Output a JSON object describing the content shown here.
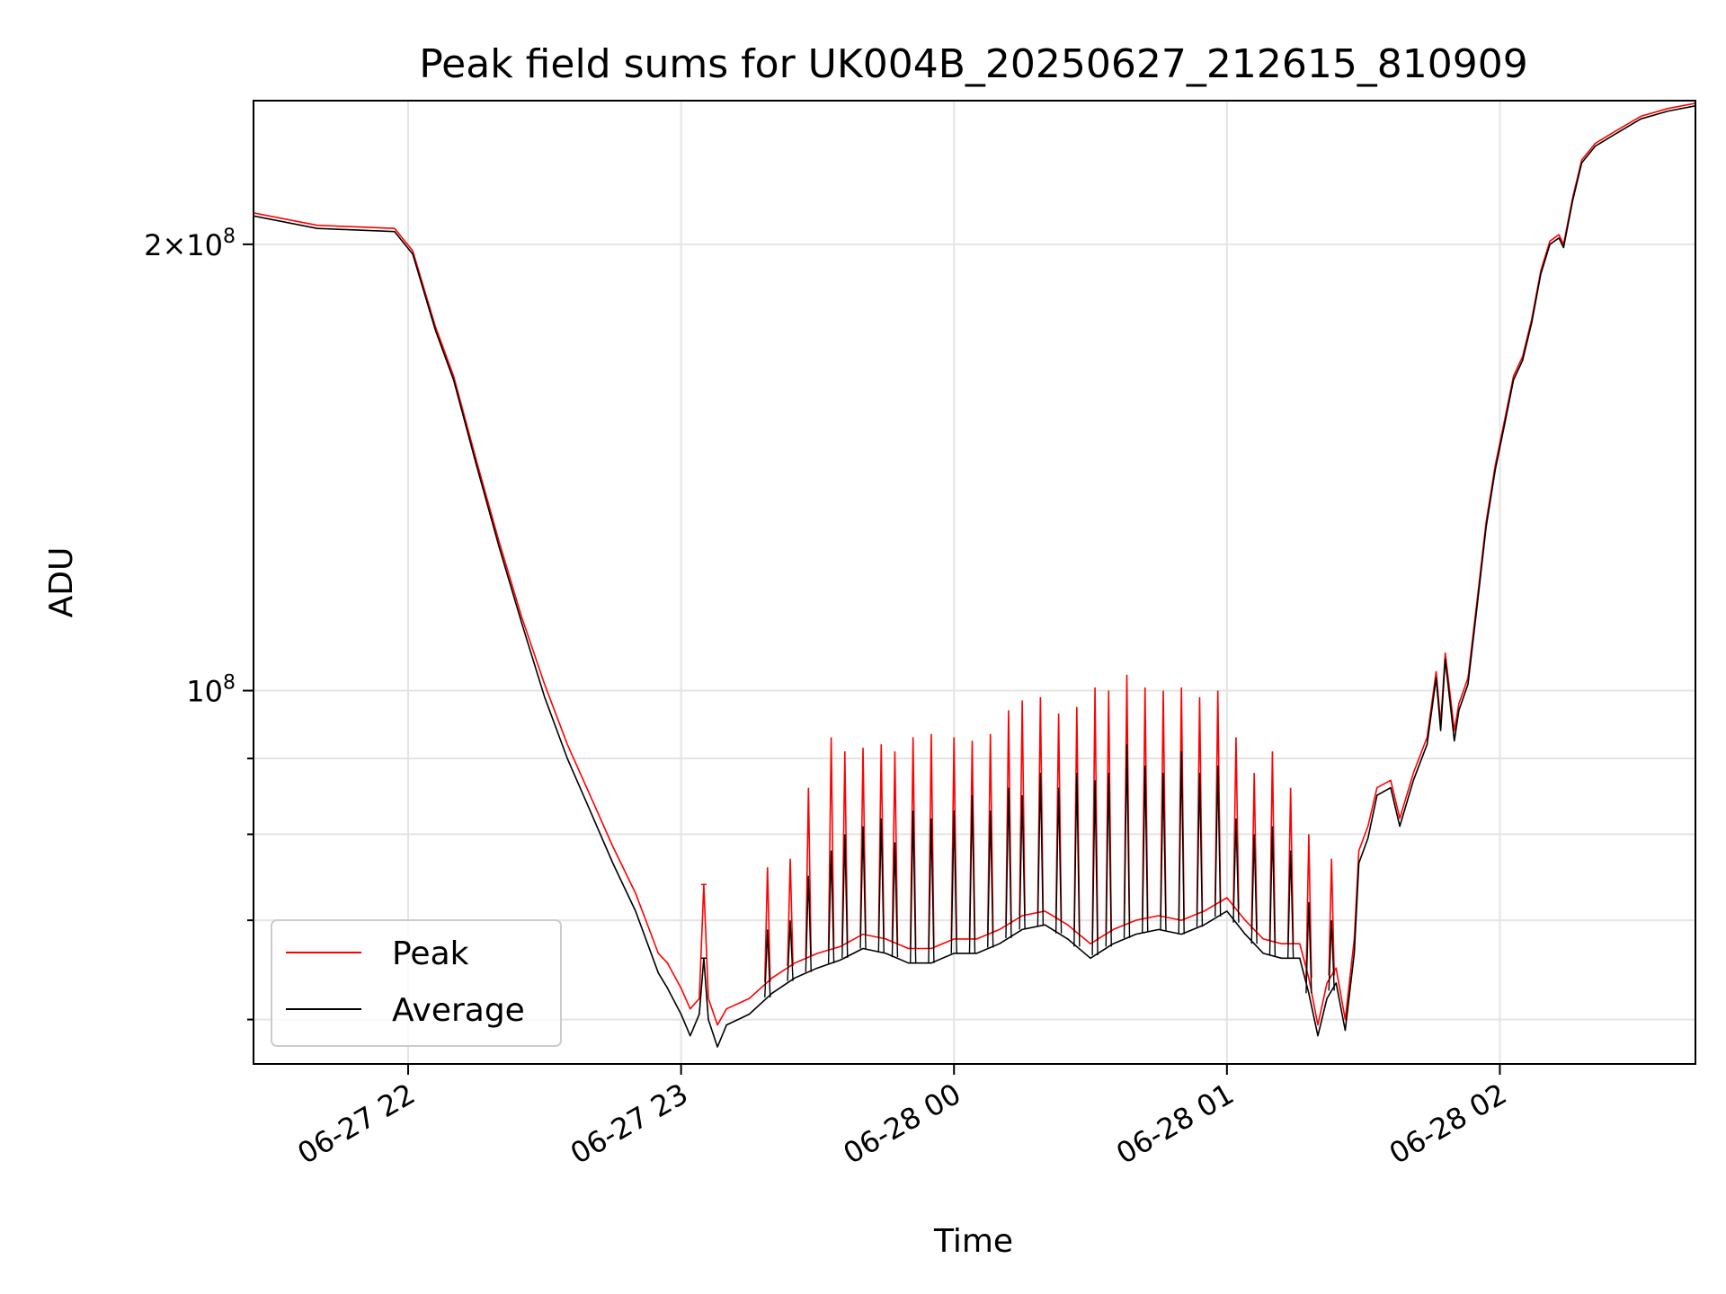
{
  "chart_data": {
    "type": "line",
    "title": "Peak field sums for UK004B_20250627_212615_810909",
    "xlabel": "Time",
    "ylabel": "ADU",
    "yscale": "log",
    "ylim": [
      56000000,
      250000000
    ],
    "xlim": [
      "2025-06-27 21:26",
      "2025-06-28 02:43"
    ],
    "grid": true,
    "legend_position": "lower-left",
    "x_ticks": [
      {
        "label": "06-27 22",
        "time": "2025-06-27 22:00"
      },
      {
        "label": "06-27 23",
        "time": "2025-06-27 23:00"
      },
      {
        "label": "06-28 00",
        "time": "2025-06-28 00:00"
      },
      {
        "label": "06-28 01",
        "time": "2025-06-28 01:00"
      },
      {
        "label": "06-28 02",
        "time": "2025-06-28 02:00"
      }
    ],
    "y_ticks": [
      {
        "value": 200000000,
        "mantissa": "2",
        "exponent": "8"
      },
      {
        "value": 100000000,
        "mantissa": "",
        "exponent": "8"
      }
    ],
    "y_minor_ticks": [
      60000000,
      70000000,
      80000000,
      90000000
    ],
    "series": [
      {
        "name": "Peak",
        "color": "#ff0000",
        "points": [
          [
            "2025-06-27 21:26",
            210000000
          ],
          [
            "2025-06-27 21:40",
            206000000
          ],
          [
            "2025-06-27 21:57",
            205000000
          ],
          [
            "2025-06-27 22:01",
            198000000
          ],
          [
            "2025-06-27 22:06",
            176000000
          ],
          [
            "2025-06-27 22:10",
            163000000
          ],
          [
            "2025-06-27 22:15",
            143000000
          ],
          [
            "2025-06-27 22:20",
            126000000
          ],
          [
            "2025-06-27 22:25",
            112000000
          ],
          [
            "2025-06-27 22:30",
            101000000
          ],
          [
            "2025-06-27 22:35",
            92000000
          ],
          [
            "2025-06-27 22:40",
            85000000
          ],
          [
            "2025-06-27 22:45",
            78500000
          ],
          [
            "2025-06-27 22:50",
            73000000
          ],
          [
            "2025-06-27 22:55",
            66500000
          ],
          [
            "2025-06-27 22:57",
            65500000
          ],
          [
            "2025-06-27 23:00",
            63000000
          ],
          [
            "2025-06-27 23:02",
            61000000
          ],
          [
            "2025-06-27 23:04",
            62000000
          ],
          [
            "2025-06-27 23:05",
            74000000
          ],
          [
            "2025-06-27 23:06",
            62000000
          ],
          [
            "2025-06-27 23:08",
            59500000
          ],
          [
            "2025-06-27 23:10",
            61000000
          ],
          [
            "2025-06-27 23:15",
            62000000
          ],
          [
            "2025-06-27 23:20",
            64000000
          ],
          [
            "2025-06-27 23:25",
            65500000
          ],
          [
            "2025-06-27 23:30",
            66500000
          ],
          [
            "2025-06-27 23:35",
            67200000
          ],
          [
            "2025-06-27 23:40",
            68500000
          ],
          [
            "2025-06-27 23:45",
            68000000
          ],
          [
            "2025-06-27 23:50",
            67000000
          ],
          [
            "2025-06-27 23:55",
            67000000
          ],
          [
            "2025-06-28 00:00",
            68000000
          ],
          [
            "2025-06-28 00:05",
            68000000
          ],
          [
            "2025-06-28 00:10",
            69000000
          ],
          [
            "2025-06-28 00:15",
            70500000
          ],
          [
            "2025-06-28 00:20",
            71000000
          ],
          [
            "2025-06-28 00:25",
            69500000
          ],
          [
            "2025-06-28 00:30",
            67500000
          ],
          [
            "2025-06-28 00:35",
            69000000
          ],
          [
            "2025-06-28 00:40",
            70000000
          ],
          [
            "2025-06-28 00:45",
            70500000
          ],
          [
            "2025-06-28 00:50",
            70000000
          ],
          [
            "2025-06-28 00:55",
            71000000
          ],
          [
            "2025-06-28 01:00",
            72500000
          ],
          [
            "2025-06-28 01:04",
            70000000
          ],
          [
            "2025-06-28 01:08",
            68000000
          ],
          [
            "2025-06-28 01:12",
            67500000
          ],
          [
            "2025-06-28 01:16",
            67500000
          ],
          [
            "2025-06-28 01:18",
            64000000
          ],
          [
            "2025-06-28 01:20",
            59500000
          ],
          [
            "2025-06-28 01:22",
            63500000
          ],
          [
            "2025-06-28 01:24",
            65000000
          ],
          [
            "2025-06-28 01:26",
            60000000
          ],
          [
            "2025-06-28 01:28",
            68000000
          ],
          [
            "2025-06-28 01:29",
            78000000
          ],
          [
            "2025-06-28 01:31",
            81000000
          ],
          [
            "2025-06-28 01:33",
            86000000
          ],
          [
            "2025-06-28 01:36",
            87000000
          ],
          [
            "2025-06-28 01:38",
            82000000
          ],
          [
            "2025-06-28 01:41",
            88000000
          ],
          [
            "2025-06-28 01:44",
            93000000
          ],
          [
            "2025-06-28 01:46",
            103000000
          ],
          [
            "2025-06-28 01:47",
            95000000
          ],
          [
            "2025-06-28 01:48",
            106000000
          ],
          [
            "2025-06-28 01:50",
            94000000
          ],
          [
            "2025-06-28 01:51",
            98000000
          ],
          [
            "2025-06-28 01:53",
            102000000
          ],
          [
            "2025-06-28 01:55",
            115000000
          ],
          [
            "2025-06-28 01:57",
            130000000
          ],
          [
            "2025-06-28 01:59",
            142000000
          ],
          [
            "2025-06-28 02:01",
            152000000
          ],
          [
            "2025-06-28 02:03",
            163000000
          ],
          [
            "2025-06-28 02:05",
            168000000
          ],
          [
            "2025-06-28 02:07",
            178000000
          ],
          [
            "2025-06-28 02:09",
            192000000
          ],
          [
            "2025-06-28 02:11",
            201000000
          ],
          [
            "2025-06-28 02:13",
            203000000
          ],
          [
            "2025-06-28 02:14",
            200000000
          ],
          [
            "2025-06-28 02:16",
            215000000
          ],
          [
            "2025-06-28 02:18",
            228000000
          ],
          [
            "2025-06-28 02:21",
            234000000
          ],
          [
            "2025-06-28 02:25",
            238000000
          ],
          [
            "2025-06-28 02:31",
            244000000
          ],
          [
            "2025-06-28 02:37",
            247000000
          ],
          [
            "2025-06-28 02:43",
            249000000
          ]
        ]
      },
      {
        "name": "Average",
        "color": "#000000",
        "points": [
          [
            "2025-06-27 21:26",
            209000000
          ],
          [
            "2025-06-27 21:40",
            205000000
          ],
          [
            "2025-06-27 21:57",
            204000000
          ],
          [
            "2025-06-27 22:01",
            197000000
          ],
          [
            "2025-06-27 22:06",
            175000000
          ],
          [
            "2025-06-27 22:10",
            162000000
          ],
          [
            "2025-06-27 22:15",
            142000000
          ],
          [
            "2025-06-27 22:20",
            125000000
          ],
          [
            "2025-06-27 22:25",
            111000000
          ],
          [
            "2025-06-27 22:30",
            99000000
          ],
          [
            "2025-06-27 22:35",
            90000000
          ],
          [
            "2025-06-27 22:40",
            83000000
          ],
          [
            "2025-06-27 22:45",
            76500000
          ],
          [
            "2025-06-27 22:50",
            71000000
          ],
          [
            "2025-06-27 22:55",
            64500000
          ],
          [
            "2025-06-27 22:57",
            63000000
          ],
          [
            "2025-06-27 23:00",
            60500000
          ],
          [
            "2025-06-27 23:02",
            58500000
          ],
          [
            "2025-06-27 23:04",
            60500000
          ],
          [
            "2025-06-27 23:05",
            66000000
          ],
          [
            "2025-06-27 23:06",
            60000000
          ],
          [
            "2025-06-27 23:08",
            57500000
          ],
          [
            "2025-06-27 23:10",
            59500000
          ],
          [
            "2025-06-27 23:15",
            60500000
          ],
          [
            "2025-06-27 23:20",
            62500000
          ],
          [
            "2025-06-27 23:25",
            64000000
          ],
          [
            "2025-06-27 23:30",
            65000000
          ],
          [
            "2025-06-27 23:35",
            65800000
          ],
          [
            "2025-06-27 23:40",
            67000000
          ],
          [
            "2025-06-27 23:45",
            66500000
          ],
          [
            "2025-06-27 23:50",
            65500000
          ],
          [
            "2025-06-27 23:55",
            65500000
          ],
          [
            "2025-06-28 00:00",
            66500000
          ],
          [
            "2025-06-28 00:05",
            66500000
          ],
          [
            "2025-06-28 00:10",
            67500000
          ],
          [
            "2025-06-28 00:15",
            69000000
          ],
          [
            "2025-06-28 00:20",
            69500000
          ],
          [
            "2025-06-28 00:25",
            68000000
          ],
          [
            "2025-06-28 00:30",
            66000000
          ],
          [
            "2025-06-28 00:35",
            67500000
          ],
          [
            "2025-06-28 00:40",
            68500000
          ],
          [
            "2025-06-28 00:45",
            69000000
          ],
          [
            "2025-06-28 00:50",
            68500000
          ],
          [
            "2025-06-28 00:55",
            69500000
          ],
          [
            "2025-06-28 01:00",
            71000000
          ],
          [
            "2025-06-28 01:04",
            68500000
          ],
          [
            "2025-06-28 01:08",
            66500000
          ],
          [
            "2025-06-28 01:12",
            66000000
          ],
          [
            "2025-06-28 01:16",
            66000000
          ],
          [
            "2025-06-28 01:18",
            62500000
          ],
          [
            "2025-06-28 01:20",
            58500000
          ],
          [
            "2025-06-28 01:22",
            62000000
          ],
          [
            "2025-06-28 01:24",
            63500000
          ],
          [
            "2025-06-28 01:26",
            59000000
          ],
          [
            "2025-06-28 01:28",
            66500000
          ],
          [
            "2025-06-28 01:29",
            76500000
          ],
          [
            "2025-06-28 01:31",
            79500000
          ],
          [
            "2025-06-28 01:33",
            85000000
          ],
          [
            "2025-06-28 01:36",
            86000000
          ],
          [
            "2025-06-28 01:38",
            81000000
          ],
          [
            "2025-06-28 01:41",
            87000000
          ],
          [
            "2025-06-28 01:44",
            92000000
          ],
          [
            "2025-06-28 01:46",
            102000000
          ],
          [
            "2025-06-28 01:47",
            94000000
          ],
          [
            "2025-06-28 01:48",
            105000000
          ],
          [
            "2025-06-28 01:50",
            92500000
          ],
          [
            "2025-06-28 01:51",
            97000000
          ],
          [
            "2025-06-28 01:53",
            101000000
          ],
          [
            "2025-06-28 01:55",
            114000000
          ],
          [
            "2025-06-28 01:57",
            129000000
          ],
          [
            "2025-06-28 01:59",
            141000000
          ],
          [
            "2025-06-28 02:01",
            151000000
          ],
          [
            "2025-06-28 02:03",
            162000000
          ],
          [
            "2025-06-28 02:05",
            167000000
          ],
          [
            "2025-06-28 02:07",
            177000000
          ],
          [
            "2025-06-28 02:09",
            191000000
          ],
          [
            "2025-06-28 02:11",
            200000000
          ],
          [
            "2025-06-28 02:13",
            202000000
          ],
          [
            "2025-06-28 02:14",
            199000000
          ],
          [
            "2025-06-28 02:16",
            214000000
          ],
          [
            "2025-06-28 02:18",
            227000000
          ],
          [
            "2025-06-28 02:21",
            233000000
          ],
          [
            "2025-06-28 02:25",
            237000000
          ],
          [
            "2025-06-28 02:31",
            243000000
          ],
          [
            "2025-06-28 02:37",
            246000000
          ],
          [
            "2025-06-28 02:43",
            248000000
          ]
        ]
      }
    ],
    "peak_spikes": [
      {
        "time": "2025-06-27 23:05",
        "peak": 74000000,
        "average": 66000000
      },
      {
        "time": "2025-06-27 23:19",
        "peak": 76000000,
        "average": 69000000
      },
      {
        "time": "2025-06-27 23:24",
        "peak": 77000000,
        "average": 70000000
      },
      {
        "time": "2025-06-27 23:28",
        "peak": 86000000,
        "average": 75000000
      },
      {
        "time": "2025-06-27 23:33",
        "peak": 93000000,
        "average": 78000000
      },
      {
        "time": "2025-06-27 23:36",
        "peak": 91000000,
        "average": 80000000
      },
      {
        "time": "2025-06-27 23:40",
        "peak": 91500000,
        "average": 81000000
      },
      {
        "time": "2025-06-27 23:44",
        "peak": 92000000,
        "average": 82000000
      },
      {
        "time": "2025-06-27 23:47",
        "peak": 91000000,
        "average": 79000000
      },
      {
        "time": "2025-06-27 23:51",
        "peak": 93000000,
        "average": 83000000
      },
      {
        "time": "2025-06-27 23:55",
        "peak": 93500000,
        "average": 82000000
      },
      {
        "time": "2025-06-28 00:00",
        "peak": 93000000,
        "average": 83000000
      },
      {
        "time": "2025-06-28 00:04",
        "peak": 92500000,
        "average": 85000000
      },
      {
        "time": "2025-06-28 00:08",
        "peak": 93500000,
        "average": 83000000
      },
      {
        "time": "2025-06-28 00:12",
        "peak": 97000000,
        "average": 86000000
      },
      {
        "time": "2025-06-28 00:15",
        "peak": 98500000,
        "average": 85000000
      },
      {
        "time": "2025-06-28 00:19",
        "peak": 99000000,
        "average": 88000000
      },
      {
        "time": "2025-06-28 00:23",
        "peak": 96500000,
        "average": 86000000
      },
      {
        "time": "2025-06-28 00:27",
        "peak": 97500000,
        "average": 88000000
      },
      {
        "time": "2025-06-28 00:31",
        "peak": 100500000,
        "average": 87000000
      },
      {
        "time": "2025-06-28 00:34",
        "peak": 100000000,
        "average": 88000000
      },
      {
        "time": "2025-06-28 00:38",
        "peak": 102500000,
        "average": 92000000
      },
      {
        "time": "2025-06-28 00:42",
        "peak": 100500000,
        "average": 89000000
      },
      {
        "time": "2025-06-28 00:46",
        "peak": 100000000,
        "average": 88000000
      },
      {
        "time": "2025-06-28 00:50",
        "peak": 100500000,
        "average": 91000000
      },
      {
        "time": "2025-06-28 00:54",
        "peak": 99000000,
        "average": 88000000
      },
      {
        "time": "2025-06-28 00:58",
        "peak": 100000000,
        "average": 89000000
      },
      {
        "time": "2025-06-28 01:02",
        "peak": 93000000,
        "average": 82000000
      },
      {
        "time": "2025-06-28 01:06",
        "peak": 88000000,
        "average": 80000000
      },
      {
        "time": "2025-06-28 01:10",
        "peak": 91000000,
        "average": 81000000
      },
      {
        "time": "2025-06-28 01:14",
        "peak": 86000000,
        "average": 78000000
      },
      {
        "time": "2025-06-28 01:18",
        "peak": 80000000,
        "average": 72000000
      },
      {
        "time": "2025-06-28 01:23",
        "peak": 77000000,
        "average": 70000000
      }
    ],
    "legend": [
      {
        "label": "Peak",
        "color": "#ff0000"
      },
      {
        "label": "Average",
        "color": "#000000"
      }
    ]
  }
}
